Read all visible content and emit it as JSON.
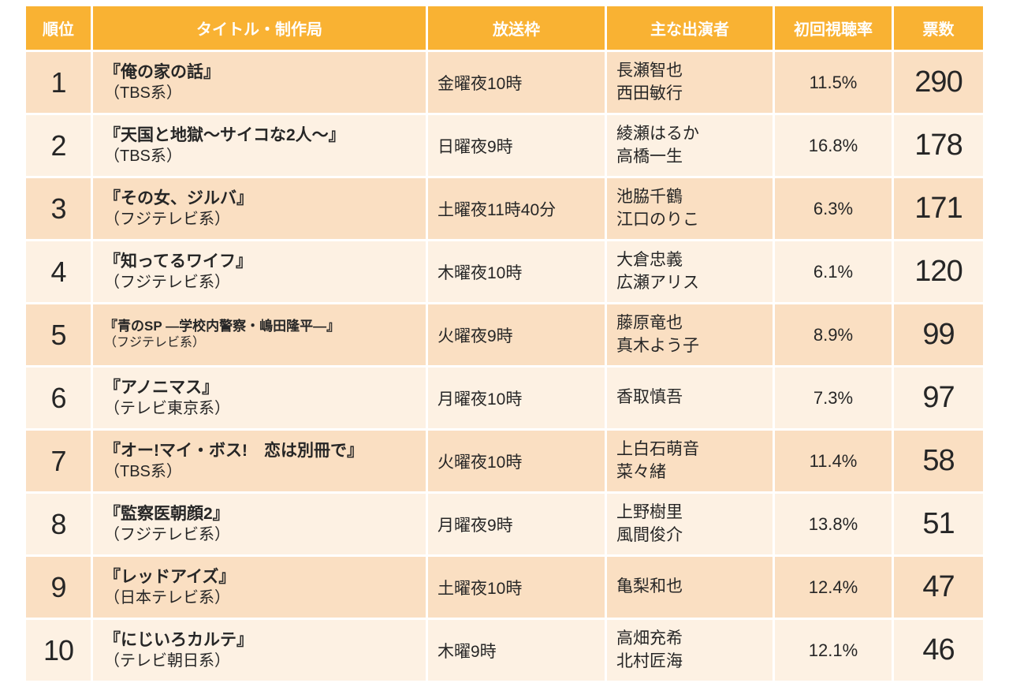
{
  "colors": {
    "header_bg": "#F9B233",
    "header_text": "#FFFFFF",
    "row_odd_bg": "#FADFC2",
    "row_even_bg": "#FDF1E3",
    "body_text": "#262626"
  },
  "table": {
    "headers": [
      "順位",
      "タイトル・制作局",
      "放送枠",
      "主な出演者",
      "初回視聴率",
      "票数"
    ],
    "rows": [
      {
        "rank": "1",
        "title": "『俺の家の話』",
        "network": "（TBS系）",
        "slot": "金曜夜10時",
        "cast": "長瀬智也\n西田敏行",
        "rating": "11.5%",
        "votes": "290"
      },
      {
        "rank": "2",
        "title": "『天国と地獄～サイコな2人～』",
        "network": "（TBS系）",
        "slot": "日曜夜9時",
        "cast": "綾瀬はるか\n高橋一生",
        "rating": "16.8%",
        "votes": "178"
      },
      {
        "rank": "3",
        "title": "『その女、ジルバ』",
        "network": "（フジテレビ系）",
        "slot": "土曜夜11時40分",
        "cast": "池脇千鶴\n江口のりこ",
        "rating": "6.3%",
        "votes": "171"
      },
      {
        "rank": "4",
        "title": "『知ってるワイフ』",
        "network": "（フジテレビ系）",
        "slot": "木曜夜10時",
        "cast": "大倉忠義\n広瀬アリス",
        "rating": "6.1%",
        "votes": "120"
      },
      {
        "rank": "5",
        "title": "『青のSP ―学校内警察・嶋田隆平―』",
        "network": "（フジテレビ系）",
        "slot": "火曜夜9時",
        "cast": "藤原竜也\n真木よう子",
        "rating": "8.9%",
        "votes": "99"
      },
      {
        "rank": "6",
        "title": "『アノニマス』",
        "network": "（テレビ東京系）",
        "slot": "月曜夜10時",
        "cast": "香取慎吾",
        "rating": "7.3%",
        "votes": "97"
      },
      {
        "rank": "7",
        "title": "『オー!マイ・ボス!　恋は別冊で』",
        "network": "（TBS系）",
        "slot": "火曜夜10時",
        "cast": "上白石萌音\n菜々緒",
        "rating": "11.4%",
        "votes": "58"
      },
      {
        "rank": "8",
        "title": "『監察医朝顔2』",
        "network": "（フジテレビ系）",
        "slot": "月曜夜9時",
        "cast": "上野樹里\n風間俊介",
        "rating": "13.8%",
        "votes": "51"
      },
      {
        "rank": "9",
        "title": "『レッドアイズ』",
        "network": "（日本テレビ系）",
        "slot": "土曜夜10時",
        "cast": "亀梨和也",
        "rating": "12.4%",
        "votes": "47"
      },
      {
        "rank": "10",
        "title": "『にじいろカルテ』",
        "network": "（テレビ朝日系）",
        "slot": "木曜9時",
        "cast": "高畑充希\n北村匠海",
        "rating": "12.1%",
        "votes": "46"
      }
    ]
  }
}
